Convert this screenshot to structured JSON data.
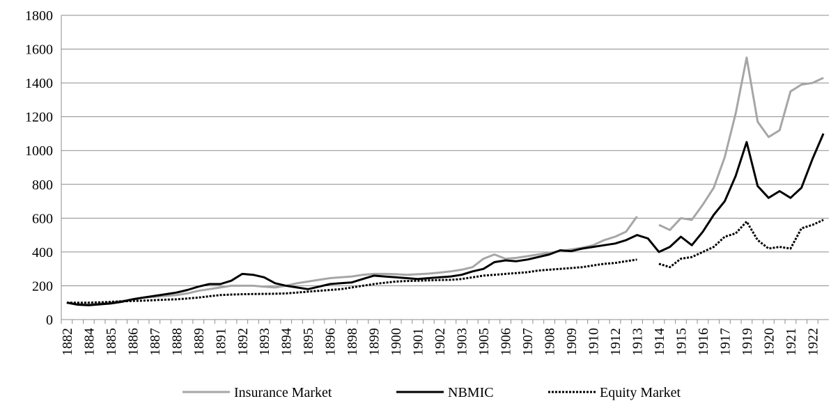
{
  "chart_data": {
    "type": "line",
    "categories": [
      "1882",
      null,
      "1884",
      null,
      "1885",
      null,
      "1886",
      null,
      "1887",
      null,
      "1888",
      null,
      "1889",
      null,
      "1891",
      null,
      "1892",
      null,
      "1893",
      null,
      "1894",
      null,
      "1895",
      null,
      "1896",
      null,
      "1898",
      null,
      "1899",
      null,
      "1900",
      null,
      "1901",
      null,
      "1902",
      null,
      "1903",
      null,
      "1905",
      null,
      "1906",
      null,
      "1907",
      null,
      "1908",
      null,
      "1909",
      null,
      "1910",
      null,
      "1912",
      null,
      "1913",
      null,
      "1914",
      null,
      "1915",
      null,
      "1916",
      null,
      "1917",
      null,
      "1919",
      null,
      "1920",
      null,
      "1921",
      null,
      "1922",
      null
    ],
    "series": [
      {
        "name": "Insurance Market",
        "color": "#a6a6a6",
        "line_style": "solid",
        "values": [
          100,
          92,
          90,
          95,
          100,
          110,
          120,
          130,
          135,
          140,
          145,
          155,
          170,
          180,
          190,
          200,
          200,
          200,
          195,
          190,
          200,
          215,
          225,
          235,
          245,
          250,
          255,
          265,
          270,
          270,
          268,
          265,
          268,
          272,
          278,
          285,
          295,
          310,
          360,
          385,
          360,
          365,
          375,
          385,
          395,
          405,
          415,
          425,
          440,
          470,
          490,
          520,
          610,
          null,
          560,
          530,
          600,
          590,
          680,
          780,
          960,
          1220,
          1550,
          1170,
          1080,
          1120,
          1350,
          1390,
          1400,
          1430
        ]
      },
      {
        "name": "NBMIC",
        "color": "#000000",
        "line_style": "solid",
        "values": [
          100,
          88,
          85,
          90,
          95,
          105,
          120,
          130,
          140,
          150,
          160,
          175,
          195,
          210,
          210,
          230,
          270,
          265,
          250,
          215,
          200,
          190,
          180,
          195,
          210,
          215,
          220,
          240,
          260,
          255,
          250,
          245,
          240,
          245,
          250,
          255,
          265,
          285,
          300,
          340,
          350,
          345,
          355,
          370,
          385,
          410,
          405,
          420,
          430,
          440,
          450,
          470,
          500,
          480,
          400,
          430,
          490,
          440,
          520,
          620,
          700,
          850,
          1050,
          790,
          720,
          760,
          720,
          780,
          950,
          1100
        ]
      },
      {
        "name": "Equity Market",
        "color": "#000000",
        "line_style": "dotted",
        "values": [
          100,
          100,
          100,
          102,
          105,
          108,
          110,
          112,
          115,
          118,
          120,
          125,
          130,
          138,
          145,
          148,
          150,
          151,
          152,
          153,
          155,
          160,
          165,
          170,
          175,
          180,
          190,
          200,
          210,
          218,
          225,
          228,
          230,
          232,
          234,
          235,
          240,
          250,
          260,
          265,
          270,
          275,
          280,
          290,
          295,
          300,
          305,
          310,
          320,
          330,
          335,
          345,
          355,
          null,
          330,
          310,
          360,
          370,
          400,
          430,
          490,
          510,
          580,
          470,
          420,
          430,
          420,
          540,
          560,
          590
        ]
      }
    ],
    "ylim": [
      0,
      1800
    ],
    "yticks": [
      0,
      200,
      400,
      600,
      800,
      1000,
      1200,
      1400,
      1600,
      1800
    ],
    "grid": true,
    "legend": "bottom"
  }
}
